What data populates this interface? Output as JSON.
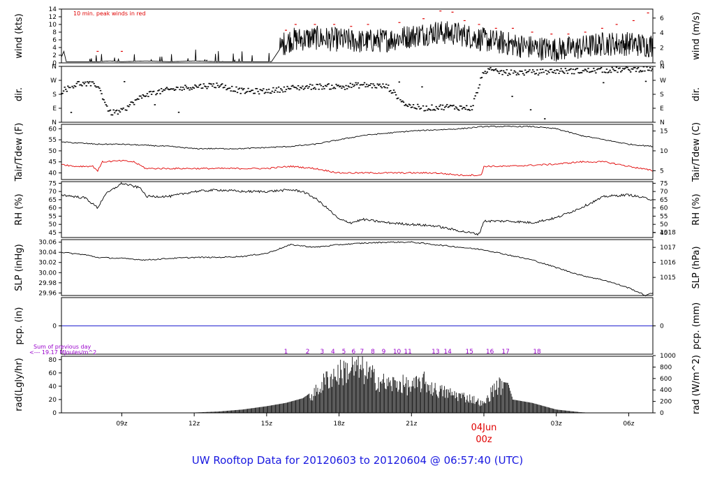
{
  "colors": {
    "series": "#000000",
    "dewpoint": "#e00000",
    "peak": "#e00000",
    "precip": "#2020d0",
    "annotation": "#9900cc",
    "date_marker": "#e00000",
    "footer": "#1818e0",
    "frame": "#000000"
  },
  "footer": {
    "title": "UW Rooftop Data for 20120603  to  20120604 @ 06:57:40  (UTC)"
  },
  "time_axis": {
    "x_range_hours": [
      6.5,
      31.0
    ],
    "ticks": [
      {
        "hour": 9,
        "label": "09z"
      },
      {
        "hour": 12,
        "label": "12z"
      },
      {
        "hour": 15,
        "label": "15z"
      },
      {
        "hour": 18,
        "label": "18z"
      },
      {
        "hour": 21,
        "label": "21z"
      },
      {
        "hour": 27,
        "label": "03z"
      },
      {
        "hour": 30,
        "label": "06z"
      }
    ],
    "date_marker": {
      "hour": 24,
      "date_label": "04Jun",
      "time_label": "00z"
    }
  },
  "chart_data": [
    {
      "id": "wind",
      "type": "line",
      "left_label": "wind (kts)",
      "right_label": "wind (m/s)",
      "annotation": "10 min. peak winds in red",
      "ylim": [
        0,
        14
      ],
      "left_ticks": [
        0,
        2,
        4,
        6,
        8,
        10,
        12,
        14
      ],
      "right_ticks": [
        {
          "value": 0,
          "label": "0"
        },
        {
          "value": 3.89,
          "label": "2"
        },
        {
          "value": 7.78,
          "label": "4"
        },
        {
          "value": 11.66,
          "label": "6"
        }
      ],
      "keypoints": [
        [
          6.5,
          1.5
        ],
        [
          6.6,
          3.0
        ],
        [
          6.7,
          0.3
        ],
        [
          7.5,
          0.3
        ],
        [
          8.0,
          0.3
        ],
        [
          8.5,
          0.5
        ],
        [
          9.0,
          0.3
        ],
        [
          10.0,
          0.5
        ],
        [
          11.0,
          0.3
        ],
        [
          12.0,
          0.5
        ],
        [
          13.0,
          0.3
        ],
        [
          14.5,
          0.3
        ],
        [
          15.2,
          0.3
        ],
        [
          15.7,
          5.0
        ],
        [
          16.0,
          6.0
        ],
        [
          17.0,
          6.5
        ],
        [
          18.0,
          6.0
        ],
        [
          19.0,
          5.5
        ],
        [
          20.0,
          6.0
        ],
        [
          21.0,
          7.0
        ],
        [
          22.0,
          8.0
        ],
        [
          23.0,
          7.5
        ],
        [
          24.0,
          6.0
        ],
        [
          25.0,
          5.0
        ],
        [
          26.0,
          4.0
        ],
        [
          27.0,
          3.5
        ],
        [
          28.0,
          4.0
        ],
        [
          29.0,
          5.0
        ],
        [
          30.0,
          5.0
        ],
        [
          31.0,
          4.5
        ]
      ],
      "gusts": [
        [
          8.0,
          3.0
        ],
        [
          9.0,
          3.0
        ],
        [
          15.8,
          8.5
        ],
        [
          16.2,
          10.0
        ],
        [
          17.0,
          10.0
        ],
        [
          17.8,
          10.0
        ],
        [
          18.5,
          9.5
        ],
        [
          19.2,
          10.0
        ],
        [
          20.5,
          10.5
        ],
        [
          21.5,
          11.5
        ],
        [
          22.2,
          13.5
        ],
        [
          22.7,
          13.2
        ],
        [
          23.2,
          11.0
        ],
        [
          23.8,
          10.0
        ],
        [
          24.5,
          9.0
        ],
        [
          25.2,
          9.0
        ],
        [
          26.0,
          8.0
        ],
        [
          26.8,
          7.5
        ],
        [
          27.5,
          7.5
        ],
        [
          28.2,
          8.0
        ],
        [
          28.9,
          9.0
        ],
        [
          29.5,
          10.0
        ],
        [
          30.2,
          11.0
        ],
        [
          30.8,
          13.0
        ]
      ]
    },
    {
      "id": "direction",
      "type": "scatter",
      "left_label": "dir.",
      "right_label": "dir.",
      "ylim": [
        0,
        360
      ],
      "category_ticks": [
        {
          "value": 0,
          "label": "N"
        },
        {
          "value": 90,
          "label": "E"
        },
        {
          "value": 180,
          "label": "S"
        },
        {
          "value": 270,
          "label": "W"
        },
        {
          "value": 360,
          "label": "N"
        }
      ],
      "keypoints": [
        [
          6.5,
          200
        ],
        [
          7.2,
          250
        ],
        [
          8.0,
          240
        ],
        [
          8.5,
          60
        ],
        [
          9.0,
          70
        ],
        [
          9.5,
          130
        ],
        [
          10.0,
          180
        ],
        [
          11.0,
          210
        ],
        [
          12.0,
          230
        ],
        [
          13.0,
          240
        ],
        [
          14.0,
          200
        ],
        [
          15.0,
          200
        ],
        [
          16.0,
          220
        ],
        [
          17.0,
          230
        ],
        [
          18.0,
          230
        ],
        [
          19.0,
          240
        ],
        [
          20.0,
          230
        ],
        [
          20.8,
          110
        ],
        [
          21.5,
          90
        ],
        [
          22.5,
          100
        ],
        [
          23.5,
          90
        ],
        [
          24.0,
          330
        ],
        [
          25.0,
          320
        ],
        [
          26.0,
          320
        ],
        [
          27.0,
          330
        ],
        [
          28.0,
          330
        ],
        [
          29.0,
          335
        ],
        [
          30.0,
          340
        ],
        [
          31.0,
          345
        ]
      ]
    },
    {
      "id": "temperature",
      "type": "line",
      "left_label": "Tair/Tdew (F)",
      "right_label": "Tair/Tdew (C)",
      "ylim": [
        37,
        62
      ],
      "left_ticks": [
        40,
        45,
        50,
        55,
        60
      ],
      "right_ticks": [
        {
          "value": 41,
          "label": "5"
        },
        {
          "value": 50,
          "label": "10"
        },
        {
          "value": 59,
          "label": "15"
        }
      ],
      "series": [
        {
          "name": "Tair",
          "keypoints": [
            [
              6.5,
              54
            ],
            [
              8.0,
              53
            ],
            [
              9.0,
              53
            ],
            [
              10.0,
              52.5
            ],
            [
              11.0,
              52
            ],
            [
              12.0,
              51
            ],
            [
              13.0,
              51
            ],
            [
              14.0,
              51
            ],
            [
              15.0,
              51.5
            ],
            [
              16.0,
              52
            ],
            [
              17.0,
              53
            ],
            [
              18.0,
              55
            ],
            [
              19.0,
              57
            ],
            [
              20.0,
              58
            ],
            [
              21.0,
              59
            ],
            [
              22.0,
              59.5
            ],
            [
              23.0,
              60
            ],
            [
              24.0,
              61
            ],
            [
              25.0,
              61
            ],
            [
              26.0,
              61
            ],
            [
              27.0,
              60
            ],
            [
              28.0,
              57
            ],
            [
              29.0,
              55
            ],
            [
              30.0,
              53
            ],
            [
              31.0,
              52
            ]
          ]
        },
        {
          "name": "Tdew",
          "keypoints": [
            [
              6.5,
              44
            ],
            [
              7.0,
              43
            ],
            [
              7.8,
              43
            ],
            [
              8.0,
              41
            ],
            [
              8.2,
              45
            ],
            [
              9.0,
              45.5
            ],
            [
              9.5,
              45
            ],
            [
              10.0,
              42
            ],
            [
              11.0,
              42
            ],
            [
              13.0,
              42
            ],
            [
              15.0,
              42
            ],
            [
              16.0,
              43
            ],
            [
              17.0,
              42
            ],
            [
              18.0,
              40
            ],
            [
              19.0,
              40
            ],
            [
              20.0,
              40
            ],
            [
              21.0,
              40
            ],
            [
              22.0,
              40
            ],
            [
              23.0,
              39
            ],
            [
              23.9,
              39
            ],
            [
              24.0,
              43
            ],
            [
              25.0,
              43
            ],
            [
              26.0,
              43.5
            ],
            [
              27.0,
              44
            ],
            [
              28.0,
              45
            ],
            [
              29.0,
              45
            ],
            [
              30.0,
              43
            ],
            [
              31.0,
              41
            ]
          ]
        }
      ]
    },
    {
      "id": "humidity",
      "type": "line",
      "left_label": "RH (%)",
      "right_label": "RH (%)",
      "ylim": [
        42,
        76
      ],
      "left_ticks": [
        45,
        50,
        55,
        60,
        65,
        70,
        75
      ],
      "right_ticks": [
        {
          "value": 45,
          "label": "45"
        },
        {
          "value": 50,
          "label": "50"
        },
        {
          "value": 55,
          "label": "55"
        },
        {
          "value": 60,
          "label": "60"
        },
        {
          "value": 65,
          "label": "65"
        },
        {
          "value": 70,
          "label": "70"
        },
        {
          "value": 75,
          "label": "75"
        }
      ],
      "keypoints": [
        [
          6.5,
          68
        ],
        [
          7.5,
          66
        ],
        [
          8.0,
          60
        ],
        [
          8.3,
          68
        ],
        [
          9.0,
          75
        ],
        [
          9.8,
          72
        ],
        [
          10.0,
          67
        ],
        [
          11.0,
          67
        ],
        [
          12.0,
          70
        ],
        [
          13.0,
          71
        ],
        [
          14.0,
          70
        ],
        [
          15.0,
          70
        ],
        [
          16.0,
          71
        ],
        [
          16.5,
          70
        ],
        [
          17.0,
          66
        ],
        [
          17.5,
          60
        ],
        [
          18.0,
          53
        ],
        [
          18.5,
          51
        ],
        [
          19.0,
          53
        ],
        [
          20.0,
          51
        ],
        [
          21.0,
          50
        ],
        [
          22.0,
          49
        ],
        [
          23.0,
          46
        ],
        [
          23.8,
          44
        ],
        [
          24.0,
          52
        ],
        [
          25.0,
          52
        ],
        [
          26.0,
          51
        ],
        [
          27.0,
          54
        ],
        [
          28.0,
          60
        ],
        [
          29.0,
          67
        ],
        [
          30.0,
          68
        ],
        [
          31.0,
          65
        ]
      ]
    },
    {
      "id": "pressure",
      "type": "line",
      "left_label": "SLP (inHg)",
      "right_label": "SLP (hPa)",
      "ylim": [
        29.955,
        30.065
      ],
      "left_ticks": [
        {
          "value": 29.96,
          "label": "29.96"
        },
        {
          "value": 29.98,
          "label": "29.98"
        },
        {
          "value": 30.0,
          "label": "30.00"
        },
        {
          "value": 30.02,
          "label": "30.02"
        },
        {
          "value": 30.04,
          "label": "30.04"
        },
        {
          "value": 30.06,
          "label": "30.06"
        }
      ],
      "right_ticks": [
        {
          "value": 29.9906,
          "label": "1015"
        },
        {
          "value": 30.0201,
          "label": "1016"
        },
        {
          "value": 30.0497,
          "label": "1017"
        },
        {
          "value": 30.0792,
          "label": "1018"
        }
      ],
      "keypoints": [
        [
          6.5,
          30.04
        ],
        [
          7.5,
          30.035
        ],
        [
          8.0,
          30.03
        ],
        [
          9.0,
          30.028
        ],
        [
          10.0,
          30.025
        ],
        [
          11.0,
          30.028
        ],
        [
          12.0,
          30.03
        ],
        [
          13.0,
          30.03
        ],
        [
          14.0,
          30.032
        ],
        [
          15.0,
          30.038
        ],
        [
          16.0,
          30.055
        ],
        [
          17.0,
          30.05
        ],
        [
          18.0,
          30.055
        ],
        [
          19.0,
          30.058
        ],
        [
          20.0,
          30.06
        ],
        [
          21.0,
          30.06
        ],
        [
          22.0,
          30.055
        ],
        [
          23.0,
          30.05
        ],
        [
          24.0,
          30.045
        ],
        [
          25.0,
          30.035
        ],
        [
          26.0,
          30.025
        ],
        [
          27.0,
          30.01
        ],
        [
          28.0,
          29.995
        ],
        [
          29.0,
          29.985
        ],
        [
          30.0,
          29.97
        ],
        [
          30.7,
          29.955
        ],
        [
          31.0,
          29.96
        ]
      ]
    },
    {
      "id": "precipitation",
      "type": "line",
      "left_label": "pcp. (in)",
      "right_label": "pcp. (mm)",
      "ylim": [
        -1,
        1
      ],
      "left_ticks": [
        {
          "value": 0,
          "label": "0"
        }
      ],
      "right_ticks": [
        {
          "value": 0,
          "label": "0"
        }
      ],
      "keypoints": [
        [
          6.5,
          0
        ],
        [
          31.0,
          0
        ]
      ]
    },
    {
      "id": "radiation",
      "type": "area",
      "left_label": "rad(Lgly/hr)",
      "right_label": "rad (W/m^2)",
      "annotation_lines": [
        "Sum of previous day",
        "<--- 19.17 MJoules/m^2"
      ],
      "ylim": [
        0,
        85
      ],
      "left_ticks": [
        0,
        20,
        40,
        60,
        80
      ],
      "right_ticks": [
        {
          "value": 0,
          "label": "0"
        },
        {
          "value": 17.2,
          "label": "200"
        },
        {
          "value": 34.4,
          "label": "400"
        },
        {
          "value": 51.6,
          "label": "600"
        },
        {
          "value": 68.8,
          "label": "800"
        },
        {
          "value": 86.0,
          "label": "1000"
        }
      ],
      "hour_markers": [
        {
          "hour": 15.8,
          "label": "1"
        },
        {
          "hour": 16.7,
          "label": "2"
        },
        {
          "hour": 17.3,
          "label": "3"
        },
        {
          "hour": 17.75,
          "label": "4"
        },
        {
          "hour": 18.2,
          "label": "5"
        },
        {
          "hour": 18.6,
          "label": "6"
        },
        {
          "hour": 18.95,
          "label": "7"
        },
        {
          "hour": 19.4,
          "label": "8"
        },
        {
          "hour": 19.85,
          "label": "9"
        },
        {
          "hour": 20.4,
          "label": "10"
        },
        {
          "hour": 20.85,
          "label": "11"
        },
        {
          "hour": 22.0,
          "label": "13"
        },
        {
          "hour": 22.5,
          "label": "14"
        },
        {
          "hour": 23.4,
          "label": "15"
        },
        {
          "hour": 24.25,
          "label": "16"
        },
        {
          "hour": 24.9,
          "label": "17"
        },
        {
          "hour": 26.2,
          "label": "18"
        }
      ],
      "keypoints": [
        [
          11.9,
          0
        ],
        [
          12.0,
          0.5
        ],
        [
          13.0,
          2
        ],
        [
          14.0,
          5
        ],
        [
          15.0,
          10
        ],
        [
          15.8,
          15
        ],
        [
          16.5,
          22
        ],
        [
          17.0,
          35
        ],
        [
          17.5,
          60
        ],
        [
          18.0,
          70
        ],
        [
          18.5,
          78
        ],
        [
          19.0,
          75
        ],
        [
          19.5,
          60
        ],
        [
          20.0,
          50
        ],
        [
          20.5,
          52
        ],
        [
          21.0,
          45
        ],
        [
          21.5,
          55
        ],
        [
          22.0,
          40
        ],
        [
          22.5,
          35
        ],
        [
          23.0,
          30
        ],
        [
          23.5,
          25
        ],
        [
          24.0,
          15
        ],
        [
          24.5,
          48
        ],
        [
          25.0,
          45
        ],
        [
          25.2,
          20
        ],
        [
          26.0,
          15
        ],
        [
          26.5,
          10
        ],
        [
          27.0,
          5
        ],
        [
          27.5,
          3
        ],
        [
          28.0,
          1
        ],
        [
          28.5,
          0
        ]
      ]
    }
  ]
}
